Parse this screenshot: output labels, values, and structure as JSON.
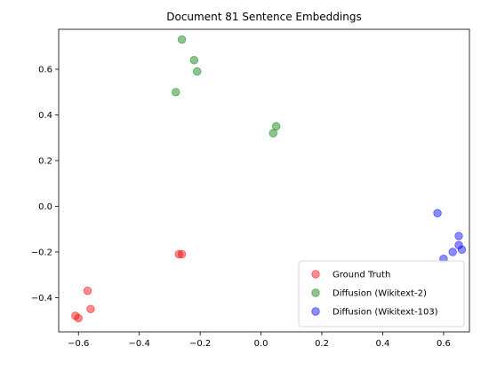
{
  "chart_data": {
    "type": "scatter",
    "title": "Document 81 Sentence Embeddings",
    "xlabel": "",
    "ylabel": "",
    "xlim": [
      -0.665,
      0.685
    ],
    "ylim": [
      -0.55,
      0.775
    ],
    "xticks": [
      -0.6,
      -0.4,
      -0.2,
      0.0,
      0.2,
      0.4,
      0.6
    ],
    "xtick_labels": [
      "−0.6",
      "−0.4",
      "−0.2",
      "0.0",
      "0.2",
      "0.4",
      "0.6"
    ],
    "yticks": [
      -0.4,
      -0.2,
      0.0,
      0.2,
      0.4,
      0.6
    ],
    "ytick_labels": [
      "−0.4",
      "−0.2",
      "0.0",
      "0.2",
      "0.4",
      "0.6"
    ],
    "grid": false,
    "legend_position": "bottom-right",
    "series": [
      {
        "name": "Ground Truth",
        "color": "#ff0000",
        "points": [
          [
            -0.61,
            -0.48
          ],
          [
            -0.6,
            -0.49
          ],
          [
            -0.57,
            -0.37
          ],
          [
            -0.56,
            -0.45
          ],
          [
            -0.27,
            -0.21
          ],
          [
            -0.26,
            -0.21
          ]
        ]
      },
      {
        "name": "Diffusion (Wikitext-2)",
        "color": "#008000",
        "points": [
          [
            -0.26,
            0.73
          ],
          [
            -0.22,
            0.64
          ],
          [
            -0.21,
            0.59
          ],
          [
            -0.28,
            0.5
          ],
          [
            0.05,
            0.35
          ],
          [
            0.04,
            0.32
          ]
        ]
      },
      {
        "name": "Diffusion (Wikitext-103)",
        "color": "#0000ff",
        "points": [
          [
            0.58,
            -0.03
          ],
          [
            0.65,
            -0.13
          ],
          [
            0.65,
            -0.17
          ],
          [
            0.66,
            -0.19
          ],
          [
            0.63,
            -0.2
          ],
          [
            0.6,
            -0.23
          ]
        ]
      }
    ]
  }
}
